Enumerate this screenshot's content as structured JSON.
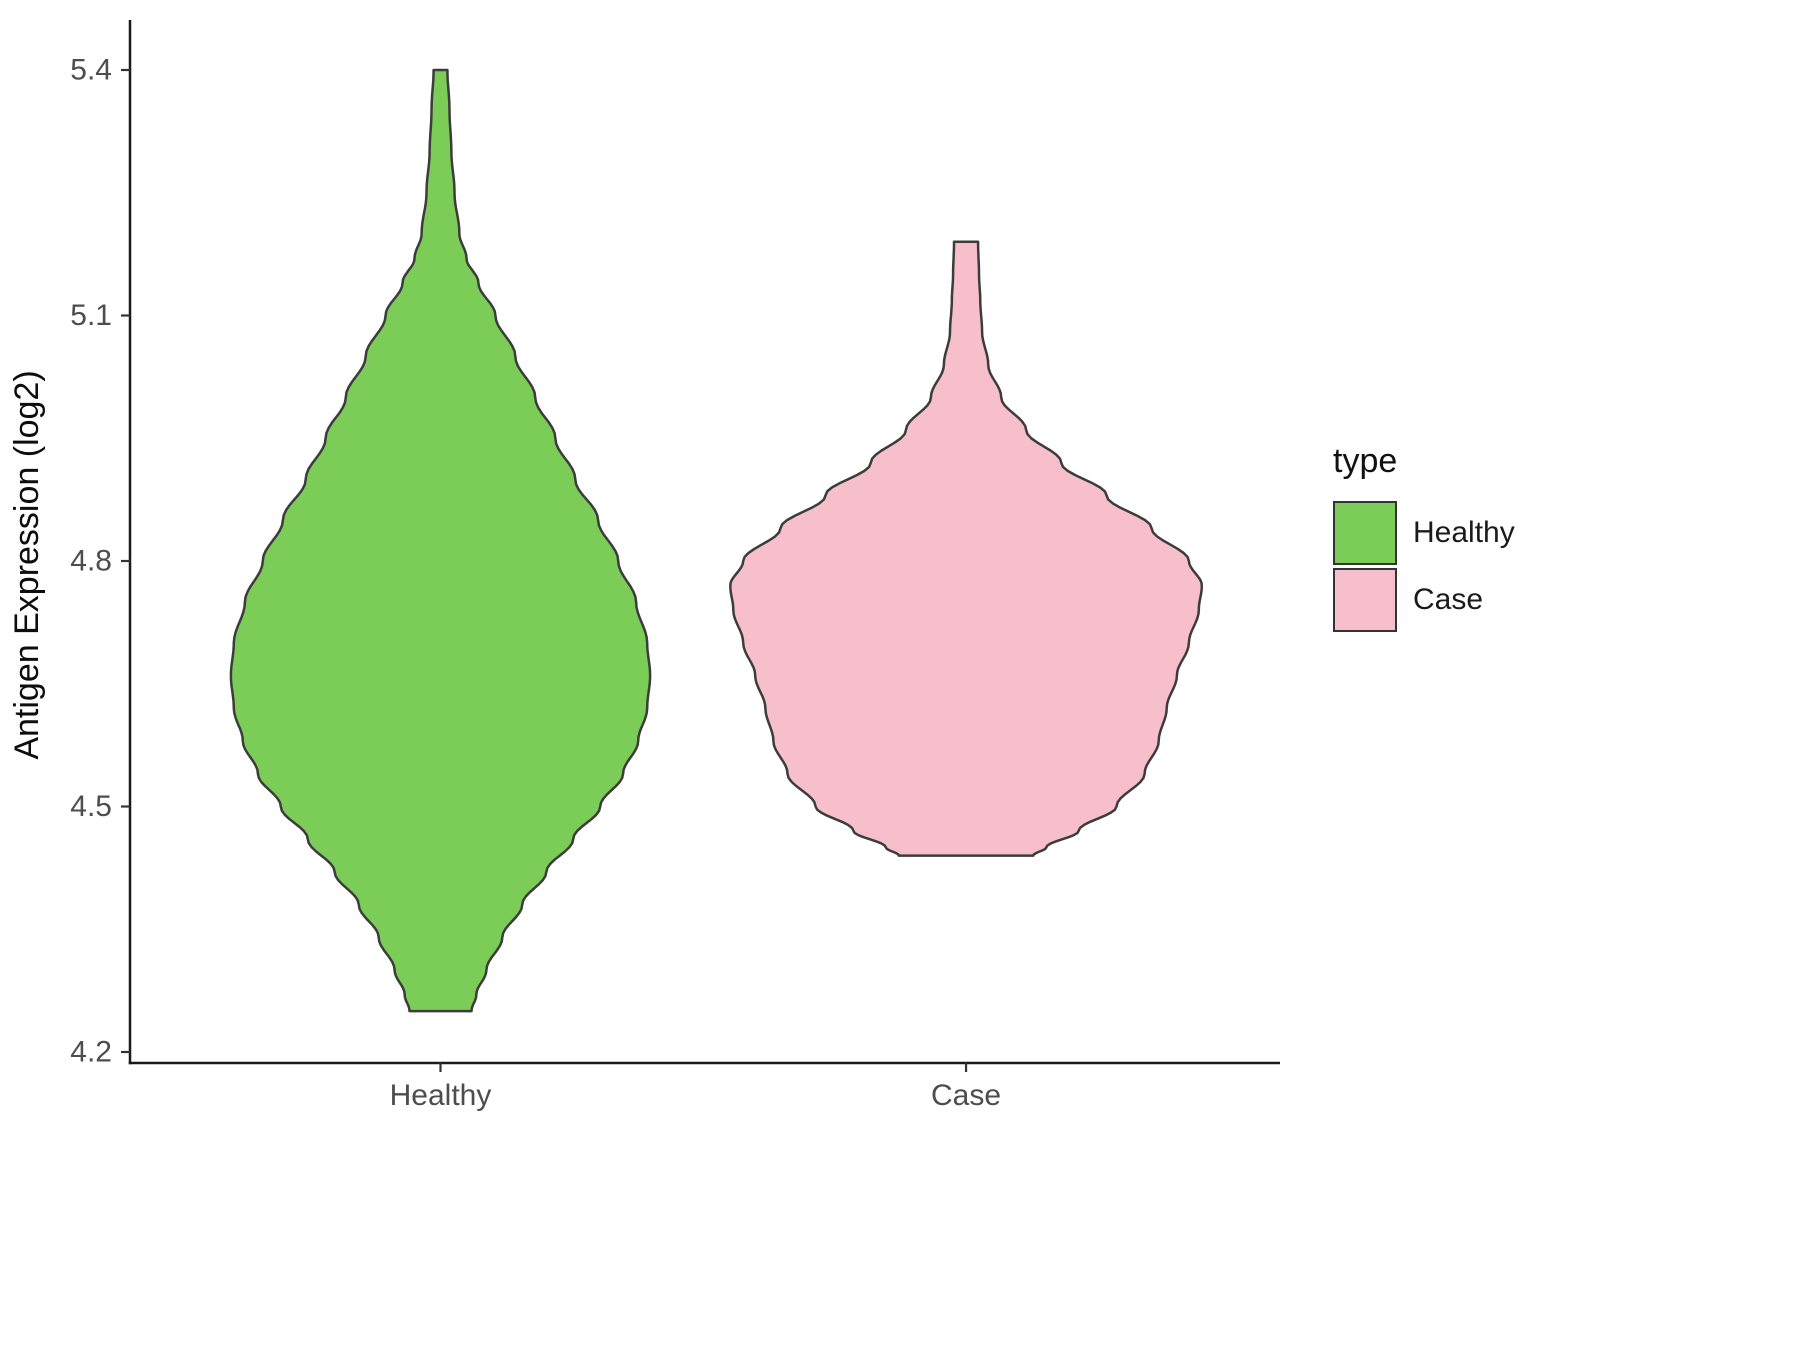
{
  "chart_data": {
    "type": "violin",
    "title": "",
    "xlabel": "",
    "ylabel": "Antigen Expression (log2)",
    "ylim": [
      4.2,
      5.4
    ],
    "yticks": [
      4.2,
      4.5,
      4.8,
      5.1,
      5.4
    ],
    "categories": [
      "Healthy",
      "Case"
    ],
    "grid": false,
    "legend_position": "right",
    "legend": {
      "title": "type",
      "entries": [
        {
          "label": "Healthy",
          "color": "#7CCD57"
        },
        {
          "label": "Case",
          "color": "#F7BFCB"
        }
      ]
    },
    "colors": {
      "axis": "#1a1a1a",
      "tick": "#333333",
      "tick_label": "#4d4d4d",
      "axis_title": "#0d0d0d",
      "violin_outline": "#3c3c3c"
    },
    "series": [
      {
        "name": "Healthy",
        "color": "#7CCD57",
        "center_frac": 0.27,
        "width_frac": 0.8,
        "range": [
          4.25,
          5.4
        ],
        "profile": [
          [
            5.4,
            0.033
          ],
          [
            5.35,
            0.043
          ],
          [
            5.3,
            0.052
          ],
          [
            5.25,
            0.067
          ],
          [
            5.2,
            0.09
          ],
          [
            5.17,
            0.124
          ],
          [
            5.14,
            0.181
          ],
          [
            5.1,
            0.262
          ],
          [
            5.05,
            0.357
          ],
          [
            5.0,
            0.452
          ],
          [
            4.95,
            0.548
          ],
          [
            4.9,
            0.643
          ],
          [
            4.85,
            0.752
          ],
          [
            4.8,
            0.848
          ],
          [
            4.75,
            0.933
          ],
          [
            4.7,
            0.986
          ],
          [
            4.66,
            1.0
          ],
          [
            4.62,
            0.986
          ],
          [
            4.58,
            0.943
          ],
          [
            4.54,
            0.871
          ],
          [
            4.5,
            0.762
          ],
          [
            4.46,
            0.633
          ],
          [
            4.42,
            0.505
          ],
          [
            4.38,
            0.39
          ],
          [
            4.34,
            0.295
          ],
          [
            4.3,
            0.219
          ],
          [
            4.27,
            0.171
          ],
          [
            4.25,
            0.148
          ]
        ]
      },
      {
        "name": "Case",
        "color": "#F7BFCB",
        "center_frac": 0.727,
        "width_frac": 0.9,
        "range": [
          4.44,
          5.19
        ],
        "profile": [
          [
            5.19,
            0.051
          ],
          [
            5.15,
            0.055
          ],
          [
            5.12,
            0.06
          ],
          [
            5.08,
            0.068
          ],
          [
            5.04,
            0.094
          ],
          [
            5.0,
            0.149
          ],
          [
            4.96,
            0.255
          ],
          [
            4.92,
            0.404
          ],
          [
            4.88,
            0.596
          ],
          [
            4.84,
            0.787
          ],
          [
            4.8,
            0.945
          ],
          [
            4.77,
            1.0
          ],
          [
            4.74,
            0.987
          ],
          [
            4.7,
            0.945
          ],
          [
            4.66,
            0.894
          ],
          [
            4.62,
            0.851
          ],
          [
            4.58,
            0.817
          ],
          [
            4.54,
            0.757
          ],
          [
            4.5,
            0.638
          ],
          [
            4.47,
            0.477
          ],
          [
            4.45,
            0.34
          ],
          [
            4.44,
            0.285
          ]
        ]
      }
    ]
  }
}
